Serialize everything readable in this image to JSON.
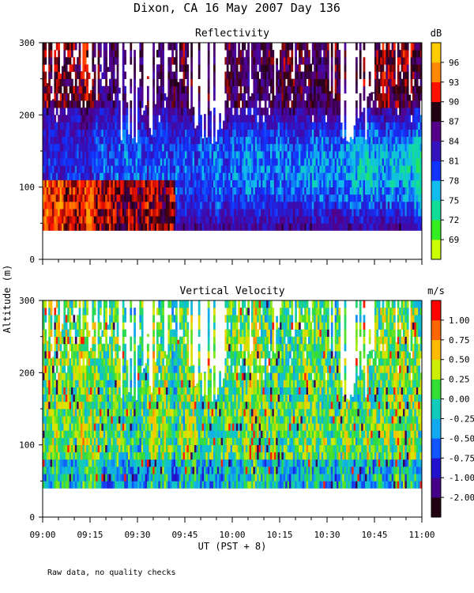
{
  "chart_data": {
    "type": "heatmap",
    "title": "Dixon, CA 16 May 2007  Day 136",
    "ylabel": "Altitude (m)",
    "xlabel": "UT  (PST + 8)",
    "x_ticks": [
      "09:00",
      "09:15",
      "09:30",
      "09:45",
      "10:00",
      "10:15",
      "10:30",
      "10:45",
      "11:00"
    ],
    "xlim_minutes_ut": [
      540,
      660
    ],
    "note": "Raw data, no quality checks",
    "panels": [
      {
        "title": "Reflectivity",
        "units": "dB",
        "ylim": [
          0,
          300
        ],
        "y_ticks": [
          "0",
          "100",
          "200",
          "300"
        ],
        "data_altitude_range_m": [
          40,
          300
        ],
        "colorbar": {
          "labels": [
            "69",
            "72",
            "75",
            "78",
            "81",
            "84",
            "87",
            "90",
            "93",
            "96"
          ],
          "colors": [
            "#ccff00",
            "#33ee22",
            "#11dd99",
            "#11bbee",
            "#1133ff",
            "#3311bb",
            "#550088",
            "#220011",
            "#ff1100",
            "#ff8800",
            "#ffcc00"
          ]
        },
        "value_range": [
          67.5,
          97.5
        ]
      },
      {
        "title": "Vertical Velocity",
        "units": "m/s",
        "ylim": [
          0,
          300
        ],
        "y_ticks": [
          "0",
          "100",
          "200",
          "300"
        ],
        "data_altitude_range_m": [
          40,
          300
        ],
        "colorbar": {
          "labels": [
            "-2.00",
            "-1.00",
            "-0.75",
            "-0.50",
            "-0.25",
            "0.00",
            "0.25",
            "0.50",
            "0.75",
            "1.00"
          ],
          "colors": [
            "#220011",
            "#440088",
            "#2211cc",
            "#1155ff",
            "#11aaee",
            "#11ccbb",
            "#33dd33",
            "#ccee00",
            "#ffbb00",
            "#ff6600",
            "#ff0000"
          ]
        },
        "value_range": [
          -2.2,
          1.2
        ]
      }
    ]
  }
}
